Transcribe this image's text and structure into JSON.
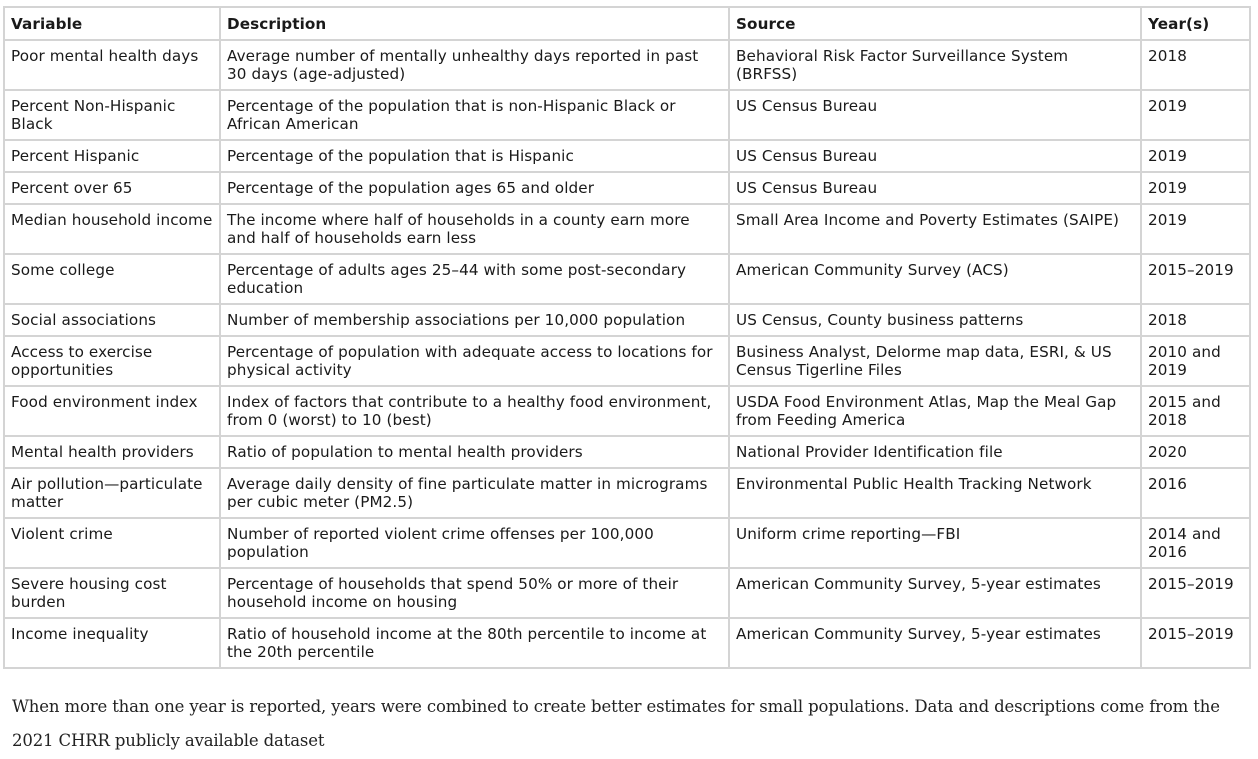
{
  "table": {
    "headers": [
      "Variable",
      "Description",
      "Source",
      "Year(s)"
    ],
    "rows": [
      [
        "Poor mental health days",
        "Average number of mentally unhealthy days reported in past 30 days (age-adjusted)",
        "Behavioral Risk Factor Surveillance System (BRFSS)",
        "2018"
      ],
      [
        "Percent Non-Hispanic Black",
        "Percentage of the population that is non-Hispanic Black or African American",
        "US Census Bureau",
        "2019"
      ],
      [
        "Percent Hispanic",
        "Percentage of the population that is Hispanic",
        "US Census Bureau",
        "2019"
      ],
      [
        "Percent over 65",
        "Percentage of the population ages 65 and older",
        "US Census Bureau",
        "2019"
      ],
      [
        "Median household income",
        "The income where half of households in a county earn more and half of households earn less",
        "Small Area Income and Poverty Estimates (SAIPE)",
        "2019"
      ],
      [
        "Some college",
        "Percentage of adults ages 25–44 with some post-secondary education",
        "American Community Survey (ACS)",
        "2015–2019"
      ],
      [
        "Social associations",
        "Number of membership associations per 10,000 population",
        "US Census, County business patterns",
        "2018"
      ],
      [
        "Access to exercise opportunities",
        "Percentage of population with adequate access to locations for physical activity",
        "Business Analyst, Delorme map data, ESRI, & US Census Tigerline Files",
        "2010 and 2019"
      ],
      [
        "Food environment index",
        "Index of factors that contribute to a healthy food environment, from 0 (worst) to 10 (best)",
        "USDA Food Environment Atlas, Map the Meal Gap from Feeding America",
        "2015 and 2018"
      ],
      [
        "Mental health providers",
        "Ratio of population to mental health providers",
        "National Provider Identification file",
        "2020"
      ],
      [
        "Air pollution—particulate matter",
        "Average daily density of fine particulate matter in micrograms per cubic meter (PM2.5)",
        "Environmental Public Health Tracking Network",
        "2016"
      ],
      [
        "Violent crime",
        "Number of reported violent crime offenses per 100,000 population",
        "Uniform crime reporting—FBI",
        "2014 and 2016"
      ],
      [
        "Severe housing cost burden",
        "Percentage of households that spend 50% or more of their household income on housing",
        "American Community Survey, 5-year estimates",
        "2015–2019"
      ],
      [
        "Income inequality",
        "Ratio of household income at the 80th percentile to income at the 20th percentile",
        "American Community Survey, 5-year estimates",
        "2015–2019"
      ]
    ]
  },
  "footnote": "When more than one year is reported, years were combined to create better estimates for small populations. Data and descriptions come from the 2021 CHRR publicly available dataset"
}
